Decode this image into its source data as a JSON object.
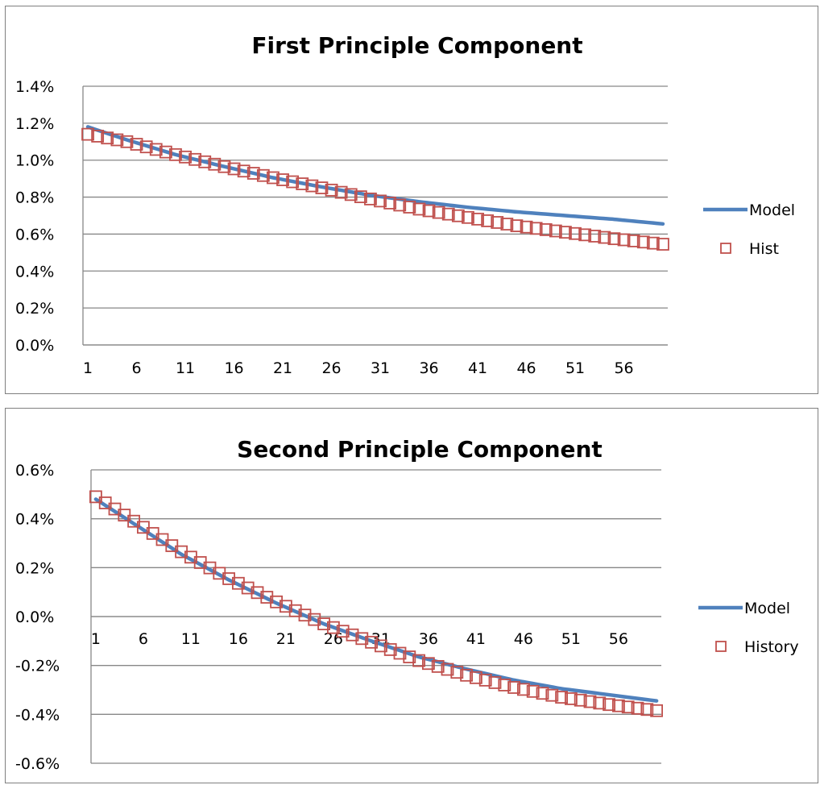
{
  "chart_data": [
    {
      "type": "line",
      "title": "First Principle Component",
      "xlabel": "",
      "ylabel": "",
      "x_range": [
        1,
        60
      ],
      "x_tick_labels": [
        "1",
        "6",
        "11",
        "16",
        "21",
        "26",
        "31",
        "36",
        "41",
        "46",
        "51",
        "56"
      ],
      "y_tick_labels": [
        "0.0%",
        "0.2%",
        "0.4%",
        "0.6%",
        "0.8%",
        "1.0%",
        "1.2%",
        "1.4%"
      ],
      "ylim": [
        0.0,
        1.4
      ],
      "grid": true,
      "legend_position": "right",
      "series": [
        {
          "name": "Model",
          "style": "line",
          "color": "#4f81bd",
          "points": [
            [
              1,
              1.18
            ],
            [
              5,
              1.11
            ],
            [
              10,
              1.03
            ],
            [
              15,
              0.965
            ],
            [
              20,
              0.905
            ],
            [
              25,
              0.855
            ],
            [
              30,
              0.81
            ],
            [
              35,
              0.775
            ],
            [
              40,
              0.745
            ],
            [
              45,
              0.72
            ],
            [
              50,
              0.7
            ],
            [
              55,
              0.68
            ],
            [
              60,
              0.655
            ]
          ]
        },
        {
          "name": "Hist",
          "style": "markers",
          "marker": "open-square",
          "color": "#c0504d",
          "points": [
            [
              1,
              1.14
            ],
            [
              5,
              1.1
            ],
            [
              10,
              1.03
            ],
            [
              15,
              0.965
            ],
            [
              20,
              0.905
            ],
            [
              25,
              0.85
            ],
            [
              30,
              0.79
            ],
            [
              35,
              0.735
            ],
            [
              40,
              0.69
            ],
            [
              45,
              0.645
            ],
            [
              50,
              0.61
            ],
            [
              55,
              0.575
            ],
            [
              60,
              0.545
            ]
          ]
        }
      ]
    },
    {
      "type": "line",
      "title": "Second Principle Component",
      "xlabel": "",
      "ylabel": "",
      "x_range": [
        1,
        60
      ],
      "x_tick_labels": [
        "1",
        "6",
        "11",
        "16",
        "21",
        "26",
        "31",
        "36",
        "41",
        "46",
        "51",
        "56"
      ],
      "y_tick_labels": [
        "-0.6%",
        "-0.4%",
        "-0.2%",
        "0.0%",
        "0.2%",
        "0.4%",
        "0.6%"
      ],
      "ylim": [
        -0.6,
        0.6
      ],
      "grid": true,
      "legend_position": "right",
      "series": [
        {
          "name": "Model",
          "style": "line",
          "color": "#4f81bd",
          "points": [
            [
              1,
              0.48
            ],
            [
              5,
              0.38
            ],
            [
              10,
              0.255
            ],
            [
              15,
              0.15
            ],
            [
              20,
              0.055
            ],
            [
              25,
              -0.03
            ],
            [
              30,
              -0.1
            ],
            [
              35,
              -0.165
            ],
            [
              40,
              -0.215
            ],
            [
              45,
              -0.26
            ],
            [
              50,
              -0.295
            ],
            [
              55,
              -0.32
            ],
            [
              60,
              -0.345
            ]
          ]
        },
        {
          "name": "History",
          "style": "markers",
          "marker": "open-square",
          "color": "#c0504d",
          "points": [
            [
              1,
              0.49
            ],
            [
              5,
              0.39
            ],
            [
              10,
              0.265
            ],
            [
              15,
              0.155
            ],
            [
              20,
              0.06
            ],
            [
              25,
              -0.03
            ],
            [
              30,
              -0.105
            ],
            [
              35,
              -0.18
            ],
            [
              40,
              -0.24
            ],
            [
              45,
              -0.29
            ],
            [
              50,
              -0.33
            ],
            [
              55,
              -0.36
            ],
            [
              60,
              -0.385
            ]
          ]
        }
      ]
    }
  ]
}
